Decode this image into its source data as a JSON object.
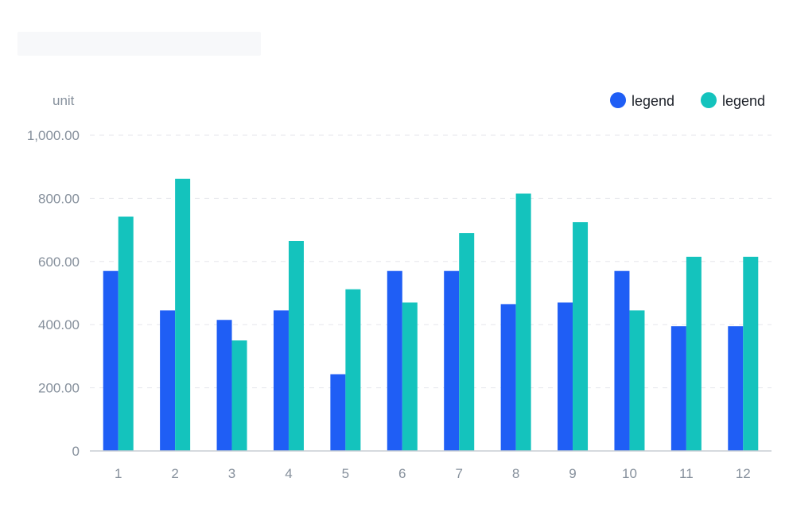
{
  "chart_data": {
    "type": "bar",
    "title": "",
    "unit": "unit",
    "categories": [
      "1",
      "2",
      "3",
      "4",
      "5",
      "6",
      "7",
      "8",
      "9",
      "10",
      "11",
      "12"
    ],
    "series": [
      {
        "name": "legend",
        "color": "#1f5ef5",
        "values": [
          570,
          445,
          415,
          445,
          243,
          570,
          570,
          465,
          470,
          570,
          395,
          395
        ]
      },
      {
        "name": "legend",
        "color": "#14c3bd",
        "values": [
          742,
          862,
          350,
          665,
          512,
          470,
          690,
          815,
          725,
          445,
          615,
          615
        ]
      }
    ],
    "ylim": [
      0,
      1000
    ],
    "yticks": [
      0,
      200,
      400,
      600,
      800,
      1000
    ],
    "ytick_labels": [
      "0",
      "200.00",
      "400.00",
      "600.00",
      "800.00",
      "1,000.00"
    ],
    "grid": true,
    "legend_position": "top-right"
  }
}
